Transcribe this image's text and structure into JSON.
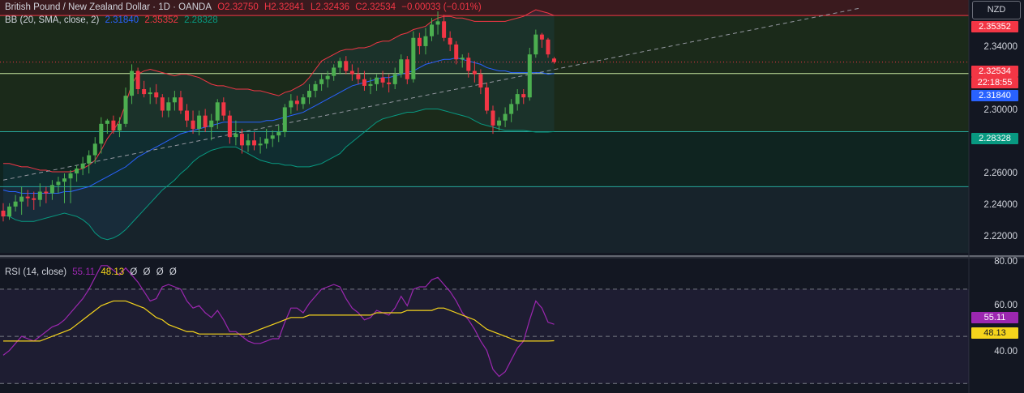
{
  "header": {
    "symbol": "British Pound / New Zealand Dollar · 1D · OANDA",
    "open": "O2.32750",
    "high": "H2.32841",
    "low": "L2.32436",
    "close": "C2.32534",
    "change": "−0.00033 (−0.01%)"
  },
  "bb_legend": {
    "label": "BB (20, SMA, close, 2)",
    "basis": "2.31840",
    "upper": "2.35352",
    "lower": "2.28328"
  },
  "rsi_legend": {
    "label": "RSI (14, close)",
    "rsi": "55.11",
    "ma": "48.13",
    "extra": [
      "Ø",
      "Ø",
      "Ø",
      "Ø"
    ]
  },
  "currency_button": "NZD",
  "colors": {
    "up": "#4caf50",
    "down": "#f23645",
    "upper_band": "#f23645",
    "basis": "#2962ff",
    "lower_band": "#089981",
    "rsi_line": "#9c27b0",
    "rsi_ma": "#f5d41c"
  },
  "price_axis": {
    "ticks": [
      "2.34000",
      "2.30000",
      "2.26000",
      "2.24000",
      "2.22000"
    ],
    "badges": {
      "upper": "2.35352",
      "price": "2.32534",
      "countdown": "22:18:55",
      "basis": "2.31840",
      "lower": "2.28328"
    }
  },
  "rsi_axis": {
    "ticks": [
      "80.00",
      "60.00",
      "40.00"
    ],
    "badges": {
      "rsi": "55.11",
      "ma": "48.13"
    }
  },
  "chart_data": {
    "type": "candlestick",
    "price_range": [
      2.21,
      2.358
    ],
    "horizontal_levels": [
      2.35352,
      2.3184,
      2.28328,
      2.25
    ],
    "candles": [
      [
        2.2355,
        2.24,
        2.229,
        2.232
      ],
      [
        2.232,
        2.24,
        2.23,
        2.238
      ],
      [
        2.238,
        2.245,
        2.235,
        2.241
      ],
      [
        2.241,
        2.25,
        2.233,
        2.244
      ],
      [
        2.244,
        2.248,
        2.238,
        2.243
      ],
      [
        2.243,
        2.247,
        2.236,
        2.242
      ],
      [
        2.242,
        2.252,
        2.238,
        2.247
      ],
      [
        2.247,
        2.25,
        2.24,
        2.246
      ],
      [
        2.246,
        2.254,
        2.242,
        2.251
      ],
      [
        2.251,
        2.256,
        2.246,
        2.253
      ],
      [
        2.253,
        2.258,
        2.24,
        2.255
      ],
      [
        2.255,
        2.26,
        2.24,
        2.258
      ],
      [
        2.258,
        2.263,
        2.253,
        2.261
      ],
      [
        2.261,
        2.268,
        2.257,
        2.264
      ],
      [
        2.264,
        2.272,
        2.258,
        2.269
      ],
      [
        2.269,
        2.28,
        2.264,
        2.276
      ],
      [
        2.276,
        2.292,
        2.27,
        2.288
      ],
      [
        2.288,
        2.291,
        2.282,
        2.29
      ],
      [
        2.29,
        2.293,
        2.282,
        2.284
      ],
      [
        2.284,
        2.292,
        2.28,
        2.288
      ],
      [
        2.288,
        2.31,
        2.286,
        2.305
      ],
      [
        2.305,
        2.324,
        2.3,
        2.32
      ],
      [
        2.32,
        2.322,
        2.306,
        2.309
      ],
      [
        2.309,
        2.314,
        2.304,
        2.306
      ],
      [
        2.306,
        2.31,
        2.3,
        2.307
      ],
      [
        2.307,
        2.312,
        2.3,
        2.304
      ],
      [
        2.304,
        2.306,
        2.292,
        2.296
      ],
      [
        2.296,
        2.304,
        2.292,
        2.301
      ],
      [
        2.301,
        2.308,
        2.296,
        2.304
      ],
      [
        2.304,
        2.308,
        2.294,
        2.296
      ],
      [
        2.296,
        2.3,
        2.286,
        2.29
      ],
      [
        2.29,
        2.296,
        2.282,
        2.285
      ],
      [
        2.285,
        2.296,
        2.281,
        2.293
      ],
      [
        2.293,
        2.297,
        2.283,
        2.286
      ],
      [
        2.286,
        2.294,
        2.278,
        2.29
      ],
      [
        2.29,
        2.303,
        2.285,
        2.301
      ],
      [
        2.301,
        2.304,
        2.29,
        2.293
      ],
      [
        2.293,
        2.296,
        2.276,
        2.28
      ],
      [
        2.28,
        2.29,
        2.275,
        2.282
      ],
      [
        2.282,
        2.285,
        2.27,
        2.275
      ],
      [
        2.275,
        2.282,
        2.271,
        2.278
      ],
      [
        2.278,
        2.283,
        2.272,
        2.275
      ],
      [
        2.275,
        2.28,
        2.27,
        2.276
      ],
      [
        2.276,
        2.285,
        2.273,
        2.279
      ],
      [
        2.279,
        2.284,
        2.274,
        2.281
      ],
      [
        2.281,
        2.287,
        2.277,
        2.283
      ],
      [
        2.283,
        2.3,
        2.28,
        2.298
      ],
      [
        2.298,
        2.306,
        2.294,
        2.302
      ],
      [
        2.302,
        2.305,
        2.296,
        2.3
      ],
      [
        2.3,
        2.306,
        2.297,
        2.304
      ],
      [
        2.304,
        2.312,
        2.3,
        2.308
      ],
      [
        2.308,
        2.314,
        2.304,
        2.312
      ],
      [
        2.312,
        2.318,
        2.308,
        2.315
      ],
      [
        2.315,
        2.32,
        2.31,
        2.317
      ],
      [
        2.317,
        2.324,
        2.314,
        2.322
      ],
      [
        2.322,
        2.328,
        2.318,
        2.326
      ],
      [
        2.326,
        2.329,
        2.318,
        2.32
      ],
      [
        2.32,
        2.324,
        2.314,
        2.318
      ],
      [
        2.318,
        2.322,
        2.312,
        2.315
      ],
      [
        2.315,
        2.32,
        2.308,
        2.311
      ],
      [
        2.311,
        2.316,
        2.306,
        2.312
      ],
      [
        2.312,
        2.318,
        2.308,
        2.316
      ],
      [
        2.316,
        2.32,
        2.31,
        2.313
      ],
      [
        2.313,
        2.318,
        2.307,
        2.312
      ],
      [
        2.312,
        2.322,
        2.309,
        2.318
      ],
      [
        2.318,
        2.33,
        2.316,
        2.327
      ],
      [
        2.327,
        2.329,
        2.312,
        2.315
      ],
      [
        2.315,
        2.344,
        2.313,
        2.34
      ],
      [
        2.34,
        2.343,
        2.33,
        2.335
      ],
      [
        2.335,
        2.346,
        2.33,
        2.341
      ],
      [
        2.341,
        2.352,
        2.338,
        2.348
      ],
      [
        2.348,
        2.356,
        2.342,
        2.35
      ],
      [
        2.35,
        2.354,
        2.338,
        2.34
      ],
      [
        2.34,
        2.344,
        2.332,
        2.336
      ],
      [
        2.336,
        2.338,
        2.324,
        2.327
      ],
      [
        2.327,
        2.33,
        2.322,
        2.328
      ],
      [
        2.328,
        2.331,
        2.316,
        2.32
      ],
      [
        2.32,
        2.326,
        2.313,
        2.318
      ],
      [
        2.318,
        2.321,
        2.306,
        2.31
      ],
      [
        2.31,
        2.313,
        2.294,
        2.296
      ],
      [
        2.296,
        2.299,
        2.282,
        2.287
      ],
      [
        2.287,
        2.292,
        2.284,
        2.29
      ],
      [
        2.29,
        2.298,
        2.286,
        2.294
      ],
      [
        2.294,
        2.303,
        2.289,
        2.3
      ],
      [
        2.3,
        2.309,
        2.296,
        2.306
      ],
      [
        2.306,
        2.309,
        2.3,
        2.304
      ],
      [
        2.304,
        2.334,
        2.302,
        2.33
      ],
      [
        2.33,
        2.345,
        2.328,
        2.342
      ],
      [
        2.342,
        2.343,
        2.334,
        2.339
      ],
      [
        2.339,
        2.34,
        2.328,
        2.33
      ],
      [
        2.3275,
        2.32841,
        2.32436,
        2.32534
      ]
    ],
    "bb_upper": [
      2.264,
      2.264,
      2.263,
      2.262,
      2.262,
      2.261,
      2.26,
      2.26,
      2.259,
      2.259,
      2.259,
      2.259,
      2.26,
      2.261,
      2.263,
      2.266,
      2.272,
      2.279,
      2.284,
      2.29,
      2.3,
      2.312,
      2.318,
      2.32,
      2.321,
      2.32,
      2.319,
      2.318,
      2.317,
      2.318,
      2.318,
      2.317,
      2.316,
      2.314,
      2.312,
      2.311,
      2.311,
      2.31,
      2.309,
      2.309,
      2.309,
      2.308,
      2.308,
      2.307,
      2.306,
      2.305,
      2.307,
      2.308,
      2.31,
      2.312,
      2.316,
      2.321,
      2.326,
      2.328,
      2.33,
      2.332,
      2.333,
      2.333,
      2.334,
      2.334,
      2.335,
      2.337,
      2.338,
      2.338,
      2.34,
      2.342,
      2.343,
      2.345,
      2.346,
      2.347,
      2.35,
      2.352,
      2.353,
      2.353,
      2.352,
      2.352,
      2.351,
      2.35,
      2.35,
      2.35,
      2.35,
      2.35,
      2.35,
      2.351,
      2.352,
      2.353,
      2.355,
      2.357,
      2.356,
      2.355,
      2.3535
    ],
    "bb_basis": [
      2.248,
      2.247,
      2.247,
      2.246,
      2.246,
      2.246,
      2.246,
      2.246,
      2.246,
      2.246,
      2.247,
      2.247,
      2.248,
      2.249,
      2.25,
      2.252,
      2.254,
      2.256,
      2.258,
      2.26,
      2.262,
      2.265,
      2.268,
      2.27,
      2.272,
      2.274,
      2.276,
      2.278,
      2.28,
      2.282,
      2.283,
      2.284,
      2.285,
      2.286,
      2.287,
      2.288,
      2.289,
      2.289,
      2.289,
      2.289,
      2.289,
      2.289,
      2.289,
      2.29,
      2.29,
      2.291,
      2.292,
      2.293,
      2.294,
      2.295,
      2.297,
      2.299,
      2.301,
      2.303,
      2.305,
      2.307,
      2.309,
      2.311,
      2.312,
      2.313,
      2.314,
      2.315,
      2.316,
      2.316,
      2.317,
      2.318,
      2.319,
      2.32,
      2.322,
      2.324,
      2.325,
      2.326,
      2.327,
      2.327,
      2.328,
      2.327,
      2.326,
      2.325,
      2.324,
      2.322,
      2.321,
      2.32,
      2.32,
      2.319,
      2.319,
      2.319,
      2.319,
      2.319,
      2.319,
      2.318,
      2.3184
    ],
    "bb_lower": [
      2.233,
      2.232,
      2.23,
      2.229,
      2.229,
      2.229,
      2.23,
      2.231,
      2.232,
      2.233,
      2.234,
      2.233,
      2.232,
      2.23,
      2.227,
      2.222,
      2.219,
      2.218,
      2.219,
      2.221,
      2.224,
      2.228,
      2.232,
      2.236,
      2.24,
      2.244,
      2.248,
      2.251,
      2.254,
      2.258,
      2.261,
      2.265,
      2.268,
      2.27,
      2.272,
      2.273,
      2.274,
      2.274,
      2.274,
      2.272,
      2.27,
      2.268,
      2.266,
      2.265,
      2.264,
      2.264,
      2.263,
      2.263,
      2.262,
      2.262,
      2.262,
      2.263,
      2.264,
      2.266,
      2.268,
      2.27,
      2.274,
      2.277,
      2.28,
      2.283,
      2.286,
      2.289,
      2.291,
      2.292,
      2.293,
      2.294,
      2.295,
      2.295,
      2.296,
      2.297,
      2.297,
      2.297,
      2.296,
      2.295,
      2.294,
      2.293,
      2.292,
      2.29,
      2.288,
      2.287,
      2.286,
      2.285,
      2.284,
      2.284,
      2.284,
      2.284,
      2.2835,
      2.283,
      2.283,
      2.283,
      2.2833
    ],
    "trendline": {
      "from": [
        0,
        2.254
      ],
      "to_price": 2.358,
      "to_index": 140
    },
    "rsi_range": [
      27,
      82
    ],
    "rsi_levels": [
      70,
      50,
      30
    ],
    "rsi": [
      42,
      44,
      47,
      50,
      49,
      48,
      50,
      52,
      54,
      55,
      57,
      60,
      63,
      66,
      70,
      75,
      80,
      80,
      78,
      76,
      79,
      76,
      73,
      69,
      65,
      66,
      71,
      72,
      71,
      70,
      65,
      62,
      63,
      60,
      58,
      61,
      57,
      52,
      52,
      50,
      48,
      47,
      47,
      48,
      49,
      49,
      56,
      62,
      62,
      60,
      64,
      67,
      70,
      71,
      72,
      71,
      66,
      62,
      60,
      57,
      58,
      61,
      60,
      59,
      62,
      67,
      63,
      70,
      71,
      71,
      74,
      75,
      72,
      69,
      65,
      60,
      57,
      53,
      48,
      44,
      36,
      33,
      35,
      40,
      45,
      48,
      57,
      65,
      62,
      56,
      55.11
    ],
    "rsi_ma": [
      48,
      48,
      48,
      48,
      48,
      48,
      48,
      49,
      50,
      51,
      52,
      53,
      55,
      57,
      59,
      61,
      63,
      64,
      65,
      65,
      65,
      64,
      63,
      62,
      60,
      58,
      57,
      55,
      54,
      53,
      52,
      52,
      51,
      51,
      51,
      51,
      51,
      51,
      51,
      51,
      51,
      52,
      53,
      54,
      55,
      56,
      57,
      58,
      58,
      58,
      59,
      59,
      59,
      59,
      59,
      59,
      59,
      59,
      59,
      59,
      59,
      60,
      60,
      60,
      60,
      60,
      61,
      61,
      61,
      61,
      61,
      62,
      62,
      61,
      60,
      59,
      58,
      57,
      55,
      53,
      52,
      51,
      50,
      49,
      48,
      48,
      48,
      48,
      48,
      48,
      48.13
    ]
  }
}
